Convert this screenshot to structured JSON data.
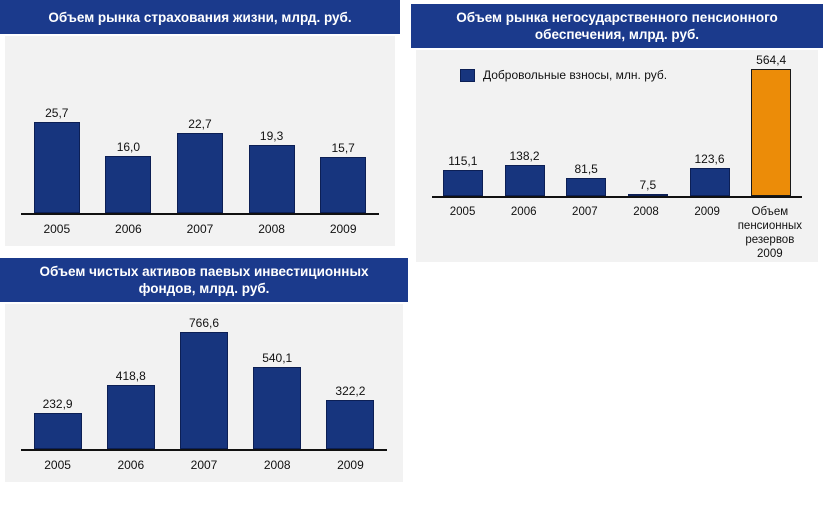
{
  "colors": {
    "header_bg": "#1b3a8c",
    "panel_bg": "#f2f2f2",
    "bar_blue": "#17357e",
    "bar_blue_border": "#0c1f55",
    "bar_orange": "#ec8c08",
    "bar_orange_border": "#1a1a1a",
    "axis": "#111111",
    "header_text": "#ffffff",
    "label_text": "#111111"
  },
  "chart_data": [
    {
      "type": "bar",
      "title": "Объем рынка страхования жизни, млрд. руб.",
      "categories": [
        "2005",
        "2006",
        "2007",
        "2008",
        "2009"
      ],
      "values": [
        25.7,
        16.0,
        22.7,
        19.3,
        15.7
      ],
      "value_labels": [
        "25,7",
        "16,0",
        "22,7",
        "19,3",
        "15,7"
      ],
      "unit": "млрд. руб.",
      "bar_color": "#17357e",
      "bar_border_color": "#0c1f55",
      "ylim": [
        0,
        50
      ],
      "grid": false,
      "legend": null
    },
    {
      "type": "bar",
      "title": "Объем рынка негосударственного пенсионного обеспечения, млрд. руб.",
      "categories": [
        "2005",
        "2006",
        "2007",
        "2008",
        "2009",
        "Объем\nпенсионных\nрезервов\n2009"
      ],
      "values": [
        115.1,
        138.2,
        81.5,
        7.5,
        123.6,
        564.4
      ],
      "value_labels": [
        "115,1",
        "138,2",
        "81,5",
        "7,5",
        "123,6",
        "564,4"
      ],
      "unit": "млн. руб.",
      "bar_color": "#17357e",
      "bar_border_color": "#0c1f55",
      "bar_colors": [
        "#17357e",
        "#17357e",
        "#17357e",
        "#17357e",
        "#17357e",
        "#ec8c08"
      ],
      "bar_border_colors": [
        "#0c1f55",
        "#0c1f55",
        "#0c1f55",
        "#0c1f55",
        "#0c1f55",
        "#1a1a1a"
      ],
      "ylim": [
        0,
        650
      ],
      "grid": false,
      "legend": {
        "label": "Добровольные взносы, млн. руб.",
        "swatch_color": "#17357e",
        "position": "top-left"
      }
    },
    {
      "type": "bar",
      "title": "Объем чистых активов паевых инвестиционных фондов, млрд. руб.",
      "categories": [
        "2005",
        "2006",
        "2007",
        "2008",
        "2009"
      ],
      "values": [
        232.9,
        418.8,
        766.6,
        540.1,
        322.2
      ],
      "value_labels": [
        "232,9",
        "418,8",
        "766,6",
        "540,1",
        "322,2"
      ],
      "unit": "млрд. руб.",
      "bar_color": "#17357e",
      "bar_border_color": "#0c1f55",
      "ylim": [
        0,
        950
      ],
      "grid": false,
      "legend": null
    }
  ]
}
